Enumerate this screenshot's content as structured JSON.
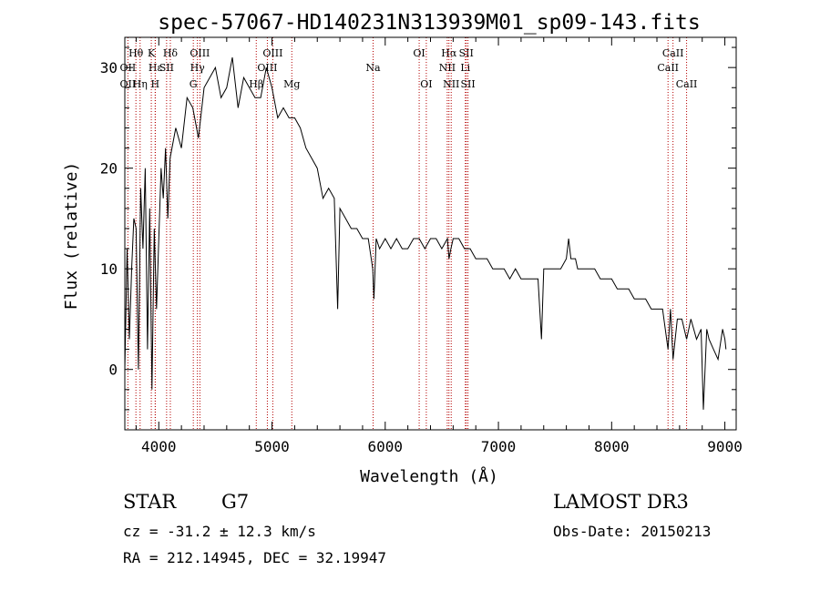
{
  "chart_data": {
    "type": "line",
    "title": "spec-57067-HD140231N313939M01_sp09-143.fits",
    "xlabel": "Wavelength (Å)",
    "ylabel": "Flux (relative)",
    "xlim": [
      3700,
      9100
    ],
    "ylim": [
      -6,
      33
    ],
    "xticks": [
      4000,
      5000,
      6000,
      7000,
      8000,
      9000
    ],
    "yticks": [
      0,
      10,
      20,
      30
    ],
    "grid": false,
    "series": [
      {
        "name": "Flux",
        "x": [
          3700,
          3720,
          3740,
          3760,
          3780,
          3800,
          3820,
          3840,
          3860,
          3880,
          3900,
          3920,
          3940,
          3960,
          3980,
          4000,
          4020,
          4040,
          4060,
          4080,
          4100,
          4150,
          4200,
          4250,
          4300,
          4350,
          4400,
          4450,
          4500,
          4550,
          4600,
          4650,
          4700,
          4750,
          4800,
          4850,
          4900,
          4950,
          5000,
          5050,
          5100,
          5150,
          5200,
          5250,
          5300,
          5350,
          5400,
          5450,
          5500,
          5550,
          5580,
          5600,
          5650,
          5700,
          5750,
          5800,
          5850,
          5890,
          5900,
          5920,
          5950,
          6000,
          6050,
          6100,
          6150,
          6200,
          6250,
          6300,
          6350,
          6400,
          6450,
          6500,
          6550,
          6563,
          6580,
          6600,
          6650,
          6700,
          6750,
          6800,
          6850,
          6900,
          6950,
          7000,
          7050,
          7100,
          7150,
          7200,
          7250,
          7300,
          7350,
          7380,
          7400,
          7450,
          7500,
          7550,
          7600,
          7620,
          7640,
          7680,
          7700,
          7750,
          7800,
          7850,
          7900,
          7950,
          8000,
          8050,
          8100,
          8150,
          8200,
          8250,
          8300,
          8350,
          8400,
          8450,
          8498,
          8520,
          8542,
          8580,
          8620,
          8662,
          8700,
          8750,
          8790,
          8810,
          8840,
          8860,
          8900,
          8940,
          8980,
          9000,
          9010
        ],
        "y": [
          0,
          12,
          3,
          10,
          15,
          14,
          0,
          18,
          12,
          20,
          2,
          16,
          -2,
          14,
          6,
          13,
          20,
          17,
          22,
          15,
          21,
          24,
          22,
          27,
          26,
          23,
          28,
          29,
          30,
          27,
          28,
          31,
          26,
          29,
          28,
          27,
          27,
          30,
          28,
          25,
          26,
          25,
          25,
          24,
          22,
          21,
          20,
          17,
          18,
          17,
          6,
          16,
          15,
          14,
          14,
          13,
          13,
          10,
          7,
          13,
          12,
          13,
          12,
          13,
          12,
          12,
          13,
          13,
          12,
          13,
          13,
          12,
          13,
          11,
          12,
          13,
          13,
          12,
          12,
          11,
          11,
          11,
          10,
          10,
          10,
          9,
          10,
          9,
          9,
          9,
          9,
          3,
          10,
          10,
          10,
          10,
          11,
          13,
          11,
          11,
          10,
          10,
          10,
          10,
          9,
          9,
          9,
          8,
          8,
          8,
          7,
          7,
          7,
          6,
          6,
          6,
          2,
          6,
          1,
          5,
          5,
          3,
          5,
          3,
          4,
          -4,
          4,
          3,
          2,
          1,
          4,
          3,
          2
        ]
      }
    ],
    "line_markers": [
      {
        "label": "Hθ",
        "x": 3798,
        "row": 1
      },
      {
        "label": "OII",
        "x": 3727,
        "row": 2
      },
      {
        "label": "OII",
        "x": 3727,
        "row": 3
      },
      {
        "label": "K",
        "x": 3934,
        "row": 1
      },
      {
        "label": "Hε",
        "x": 3970,
        "row": 2
      },
      {
        "label": "Hη",
        "x": 3835,
        "row": 3
      },
      {
        "label": "H",
        "x": 3968,
        "row": 3
      },
      {
        "label": "Hδ",
        "x": 4102,
        "row": 1
      },
      {
        "label": "SII",
        "x": 4069,
        "row": 2
      },
      {
        "label": "OIII",
        "x": 4363,
        "row": 1
      },
      {
        "label": "Hγ",
        "x": 4341,
        "row": 2
      },
      {
        "label": "G",
        "x": 4305,
        "row": 3
      },
      {
        "label": "OIII",
        "x": 5007,
        "row": 1
      },
      {
        "label": "OIII",
        "x": 4959,
        "row": 2
      },
      {
        "label": "Hβ",
        "x": 4861,
        "row": 3
      },
      {
        "label": "Mg",
        "x": 5175,
        "row": 3
      },
      {
        "label": "Na",
        "x": 5893,
        "row": 2
      },
      {
        "label": "OI",
        "x": 6300,
        "row": 1
      },
      {
        "label": "OI",
        "x": 6363,
        "row": 3
      },
      {
        "label": "Hα",
        "x": 6563,
        "row": 1
      },
      {
        "label": "SII",
        "x": 6716,
        "row": 1
      },
      {
        "label": "NII",
        "x": 6548,
        "row": 2
      },
      {
        "label": "Li",
        "x": 6708,
        "row": 2
      },
      {
        "label": "NII",
        "x": 6583,
        "row": 3
      },
      {
        "label": "SII",
        "x": 6731,
        "row": 3
      },
      {
        "label": "CaII",
        "x": 8542,
        "row": 1
      },
      {
        "label": "CaII",
        "x": 8498,
        "row": 2
      },
      {
        "label": "CaII",
        "x": 8662,
        "row": 3
      }
    ]
  },
  "info": {
    "object_class": "STAR",
    "subclass": "G7",
    "survey": "LAMOST DR3",
    "redshift": "cz = -31.2 ± 12.3 km/s",
    "obs_date": "Obs-Date: 20150213",
    "coords": "RA = 212.14945, DEC =  32.19947"
  },
  "colors": {
    "line": "#000000",
    "marker": "#b40000",
    "axes": "#000000",
    "background": "#ffffff"
  }
}
